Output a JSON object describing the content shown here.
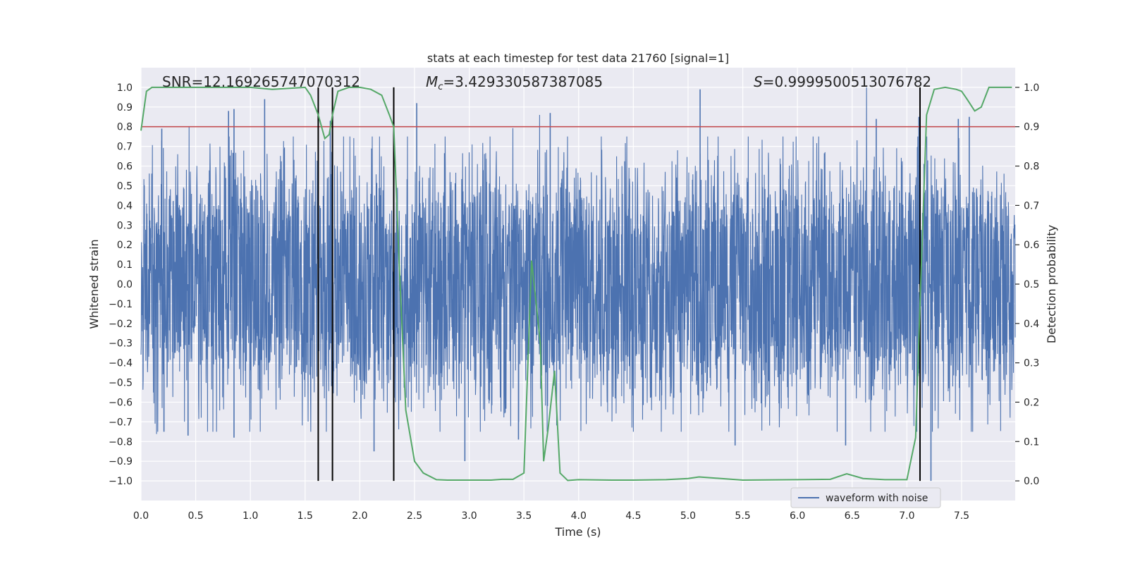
{
  "chart_data": {
    "type": "line",
    "title": "stats at each timestep for test data 21760 [signal=1]",
    "xlabel": "Time (s)",
    "ylabel": "Whitened strain",
    "y2label": "Detection probability",
    "xlim": [
      0.0,
      7.99
    ],
    "ylim": [
      -1.1,
      1.1
    ],
    "y2lim": [
      -0.05,
      1.05
    ],
    "xticks": [
      0.0,
      0.5,
      1.0,
      1.5,
      2.0,
      2.5,
      3.0,
      3.5,
      4.0,
      4.5,
      5.0,
      5.5,
      6.0,
      6.5,
      7.0,
      7.5
    ],
    "xtick_labels": [
      "0.0",
      "0.5",
      "1.0",
      "1.5",
      "2.0",
      "2.5",
      "3.0",
      "3.5",
      "4.0",
      "4.5",
      "5.0",
      "5.5",
      "6.0",
      "6.5",
      "7.0",
      "7.5"
    ],
    "yticks": [
      -1.0,
      -0.9,
      -0.8,
      -0.7,
      -0.6,
      -0.5,
      -0.4,
      -0.3,
      -0.2,
      -0.1,
      0.0,
      0.1,
      0.2,
      0.3,
      0.4,
      0.5,
      0.6,
      0.7,
      0.8,
      0.9,
      1.0
    ],
    "ytick_labels": [
      "−1.0",
      "−0.9",
      "−0.8",
      "−0.7",
      "−0.6",
      "−0.5",
      "−0.4",
      "−0.3",
      "−0.2",
      "−0.1",
      "0.0",
      "0.1",
      "0.2",
      "0.3",
      "0.4",
      "0.5",
      "0.6",
      "0.7",
      "0.8",
      "0.9",
      "1.0"
    ],
    "y2ticks": [
      0.0,
      0.1,
      0.2,
      0.3,
      0.4,
      0.5,
      0.6,
      0.7,
      0.8,
      0.9,
      1.0
    ],
    "y2tick_labels": [
      "0.0",
      "0.1",
      "0.2",
      "0.3",
      "0.4",
      "0.5",
      "0.6",
      "0.7",
      "0.8",
      "0.9",
      "1.0"
    ],
    "annotations": {
      "snr": "SNR=12.169265747070312",
      "mc_symbol": "M",
      "mc_sub": "c",
      "mc_value": "=3.429330587387085",
      "s_symbol": "S",
      "s_value": "=0.9999500513076782"
    },
    "legend": {
      "label": "waveform with noise",
      "location": "lower-right"
    },
    "threshold": {
      "value": 0.9,
      "axis": "y2",
      "color": "#c44e52"
    },
    "vertical_lines": [
      1.62,
      1.75,
      2.31,
      7.12
    ],
    "waveform": {
      "name": "waveform with noise",
      "color": "#4c72b0",
      "x_range": [
        0.0,
        7.99
      ],
      "noise_amplitude": 0.4,
      "peak_range": [
        -1.0,
        1.0
      ],
      "spikes": [
        {
          "x": 0.19,
          "y": 0.79
        },
        {
          "x": 0.8,
          "y": 0.88
        },
        {
          "x": 0.85,
          "y": 0.89
        },
        {
          "x": 1.13,
          "y": 0.94
        },
        {
          "x": 1.73,
          "y": 0.83
        },
        {
          "x": 2.52,
          "y": 0.92
        },
        {
          "x": 3.74,
          "y": 0.87
        },
        {
          "x": 5.11,
          "y": 0.99
        },
        {
          "x": 6.72,
          "y": 0.84
        },
        {
          "x": 7.11,
          "y": 0.85
        },
        {
          "x": 7.47,
          "y": 0.84
        },
        {
          "x": 7.57,
          "y": 0.85
        },
        {
          "x": 0.21,
          "y": -0.75
        },
        {
          "x": 0.43,
          "y": -0.77
        },
        {
          "x": 0.85,
          "y": -0.78
        },
        {
          "x": 2.13,
          "y": -0.85
        },
        {
          "x": 2.96,
          "y": -0.9
        },
        {
          "x": 3.45,
          "y": -0.79
        },
        {
          "x": 5.43,
          "y": -0.82
        },
        {
          "x": 6.44,
          "y": -0.82
        },
        {
          "x": 7.22,
          "y": -1.0
        }
      ]
    },
    "probability": {
      "name": "detection probability",
      "color": "#55a868",
      "x": [
        0.0,
        0.05,
        0.1,
        0.2,
        0.5,
        1.0,
        1.2,
        1.5,
        1.55,
        1.62,
        1.68,
        1.72,
        1.75,
        1.8,
        1.9,
        2.0,
        2.1,
        2.2,
        2.27,
        2.31,
        2.36,
        2.42,
        2.5,
        2.58,
        2.7,
        2.8,
        3.0,
        3.2,
        3.3,
        3.4,
        3.5,
        3.57,
        3.65,
        3.68,
        3.72,
        3.78,
        3.83,
        3.9,
        4.0,
        4.3,
        4.5,
        4.8,
        5.0,
        5.1,
        5.2,
        5.5,
        6.0,
        6.3,
        6.45,
        6.6,
        6.8,
        7.0,
        7.08,
        7.12,
        7.18,
        7.25,
        7.35,
        7.45,
        7.5,
        7.55,
        7.62,
        7.68,
        7.75,
        7.85,
        7.96
      ],
      "y": [
        0.89,
        0.99,
        1.0,
        1.0,
        1.0,
        1.0,
        0.995,
        1.0,
        0.98,
        0.93,
        0.87,
        0.88,
        0.93,
        0.99,
        1.0,
        1.0,
        0.995,
        0.98,
        0.93,
        0.9,
        0.55,
        0.18,
        0.05,
        0.02,
        0.003,
        0.002,
        0.002,
        0.002,
        0.004,
        0.004,
        0.02,
        0.56,
        0.35,
        0.05,
        0.13,
        0.28,
        0.02,
        0.001,
        0.003,
        0.002,
        0.002,
        0.003,
        0.006,
        0.01,
        0.008,
        0.002,
        0.003,
        0.004,
        0.018,
        0.006,
        0.003,
        0.003,
        0.11,
        0.45,
        0.93,
        0.995,
        1.0,
        0.995,
        0.99,
        0.97,
        0.94,
        0.95,
        1.0,
        1.0,
        1.0
      ]
    }
  }
}
